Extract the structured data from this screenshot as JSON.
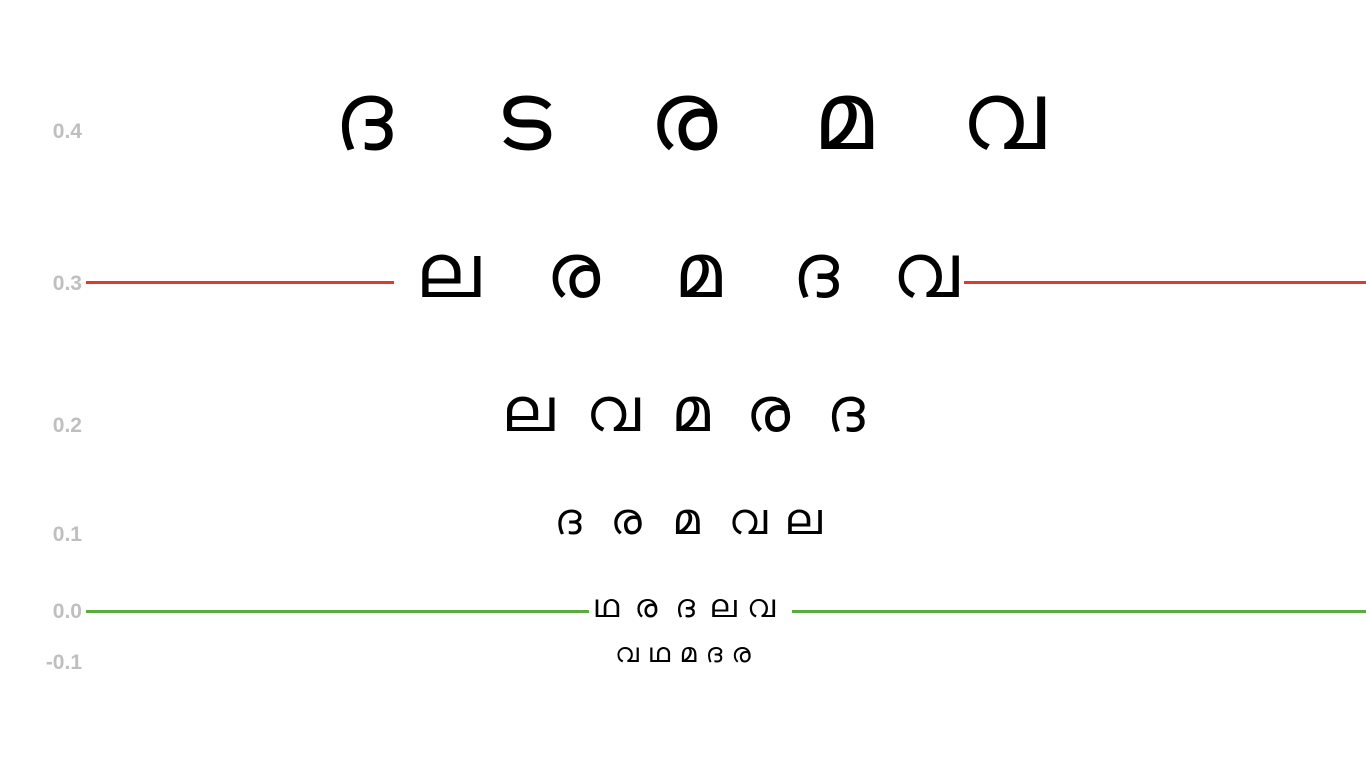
{
  "rows": [
    {
      "label": "0.4",
      "letters": [
        "ദ",
        "ട",
        "ര",
        "മ",
        "വ"
      ]
    },
    {
      "label": "0.3",
      "letters": [
        "ല",
        "ര",
        "മ",
        "ദ",
        "വ"
      ]
    },
    {
      "label": "0.2",
      "letters": [
        "ല",
        "വ",
        "മ",
        "ര",
        "ദ"
      ]
    },
    {
      "label": "0.1",
      "letters": [
        "ദ",
        "ര",
        "മ",
        "വ",
        "ല"
      ]
    },
    {
      "label": "0.0",
      "letters": [
        "ഥ",
        "ര",
        "ദ",
        "ല",
        "വ"
      ]
    },
    {
      "label": "-0.1",
      "letters": [
        "വ",
        "ഥ",
        "മ",
        "ദ",
        "ര"
      ]
    }
  ],
  "reference_lines": {
    "red": {
      "color": "#e03a2f",
      "at_label": "0.3"
    },
    "green": {
      "color": "#5aac3c",
      "at_label": "0.0"
    }
  },
  "label_color": "#bfbfbf"
}
